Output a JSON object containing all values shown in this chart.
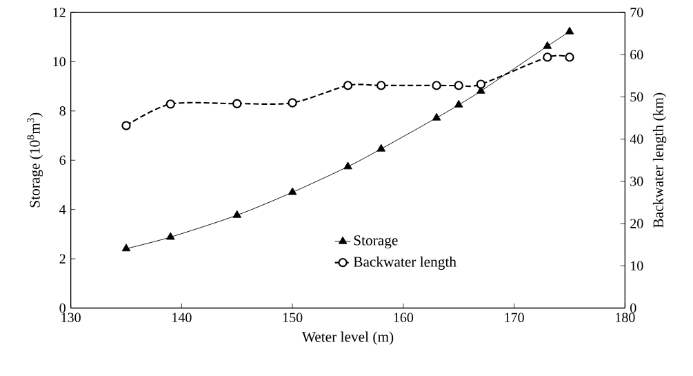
{
  "chart_data": {
    "type": "line",
    "xlabel": "Weter level (m)",
    "ylabel": "Storage (10$^{8}$m$^{3}$)",
    "y2label": "Backwater length (km)",
    "x": [
      135,
      139,
      145,
      150,
      155,
      158,
      163,
      165,
      167,
      173,
      175
    ],
    "series": [
      {
        "name": "Storage",
        "color": "#000000",
        "marker": "triangle",
        "line_style": "solid",
        "values": [
          2.41,
          2.88,
          3.77,
          4.7,
          5.74,
          6.46,
          7.72,
          8.25,
          8.81,
          10.63,
          11.22
        ]
      },
      {
        "name": "Backwater length",
        "color": "#000000",
        "marker": "circle",
        "line_style": "dashed",
        "axis": "y2",
        "values": [
          43.2,
          48.3,
          48.4,
          48.6,
          52.7,
          52.7,
          52.7,
          52.7,
          53.0,
          59.4,
          59.4
        ]
      }
    ],
    "xlim": [
      130,
      180
    ],
    "xticks": [
      130,
      140,
      150,
      160,
      170,
      180
    ],
    "ylim": [
      0,
      12
    ],
    "yticks": [
      0,
      2,
      4,
      6,
      8,
      10,
      12
    ],
    "y2lim": [
      0,
      70
    ],
    "y2ticks": [
      0,
      10,
      20,
      30,
      40,
      50,
      60,
      70
    ],
    "legend": "bottom right",
    "grid": false
  }
}
